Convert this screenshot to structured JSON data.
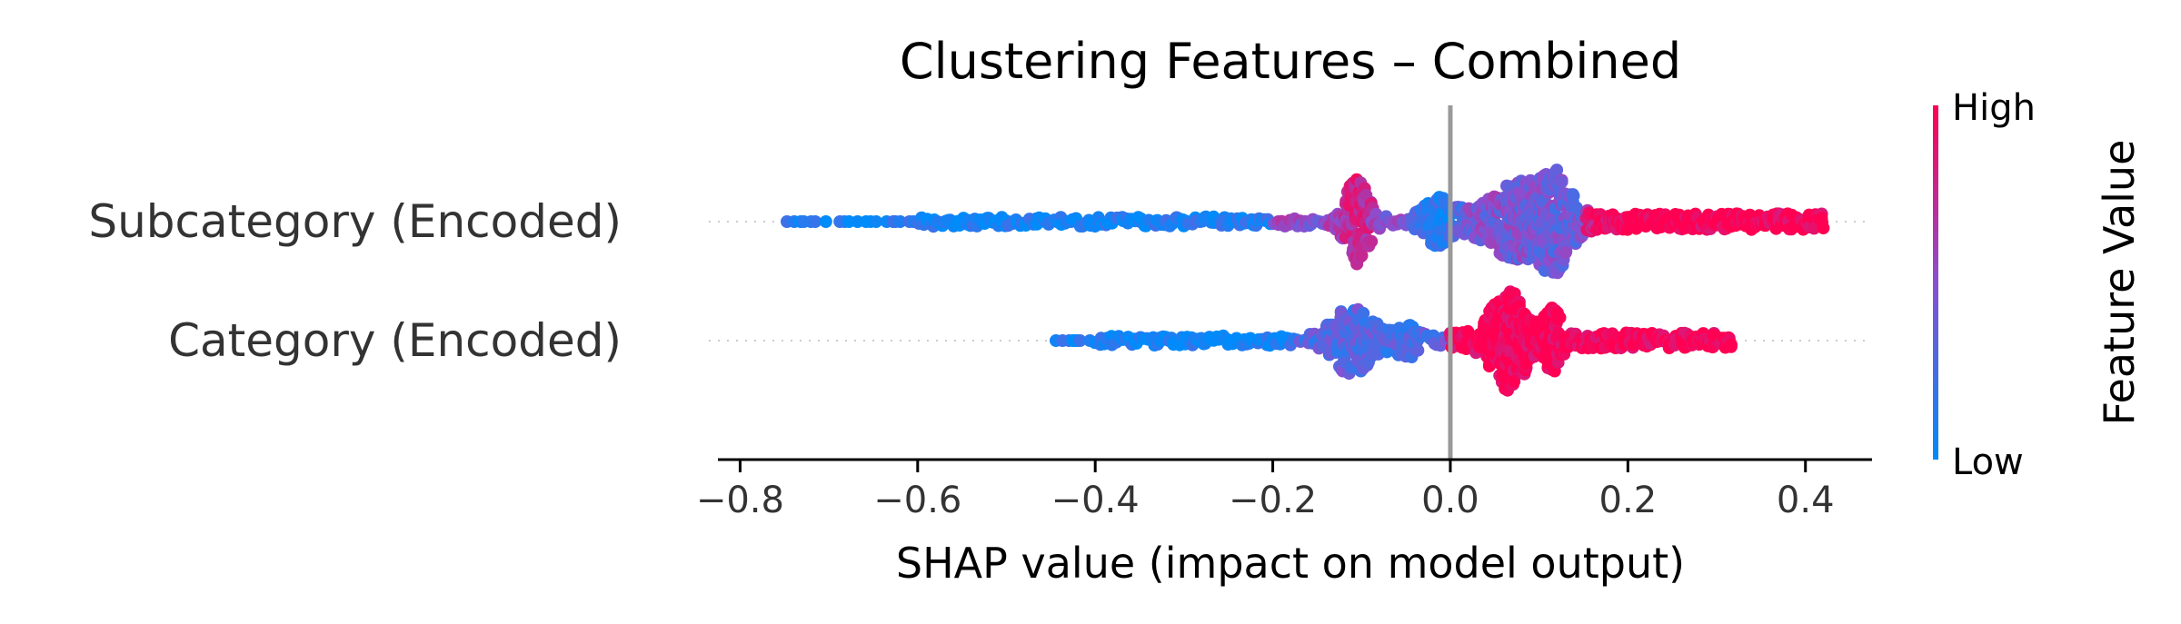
{
  "chart_data": {
    "type": "scatter",
    "subtype": "shap-beeswarm",
    "title": "Clustering Features – Combined",
    "xlabel": "SHAP value (impact on model output)",
    "xlim": [
      -0.825,
      0.475
    ],
    "xticks": [
      -0.8,
      -0.6,
      -0.4,
      -0.2,
      0.0,
      0.2,
      0.4
    ],
    "xtick_labels": [
      "−0.8",
      "−0.6",
      "−0.4",
      "−0.2",
      "0.0",
      "0.2",
      "0.4"
    ],
    "reference_line_x": 0.0,
    "features": [
      {
        "name": "Subcategory (Encoded)",
        "x_min": -0.75,
        "x_max": 0.42,
        "clusters": [
          {
            "x": -0.105,
            "spread": 0.016,
            "height": 0.75,
            "color_value": 0.8
          },
          {
            "x": -0.015,
            "spread": 0.02,
            "height": 0.4,
            "color_value": 0.1
          },
          {
            "x": 0.08,
            "spread": 0.045,
            "height": 0.62,
            "color_value": 0.45
          },
          {
            "x": 0.12,
            "spread": 0.02,
            "height": 0.55,
            "color_value": 0.35
          }
        ]
      },
      {
        "name": "Category (Encoded)",
        "x_min": -0.47,
        "x_max": 0.32,
        "clusters": [
          {
            "x": -0.11,
            "spread": 0.03,
            "height": 0.55,
            "color_value": 0.3
          },
          {
            "x": -0.05,
            "spread": 0.015,
            "height": 0.3,
            "color_value": 0.25
          },
          {
            "x": 0.065,
            "spread": 0.025,
            "height": 0.82,
            "color_value": 1.0
          },
          {
            "x": 0.115,
            "spread": 0.012,
            "height": 0.5,
            "color_value": 1.0
          }
        ]
      }
    ],
    "colorbar": {
      "title": "Feature Value",
      "high_label": "High",
      "low_label": "Low",
      "low_color": "#008bfb",
      "mid_color": "#8a4fd0",
      "high_color": "#ff0052"
    },
    "grid": false,
    "legend": "none"
  }
}
